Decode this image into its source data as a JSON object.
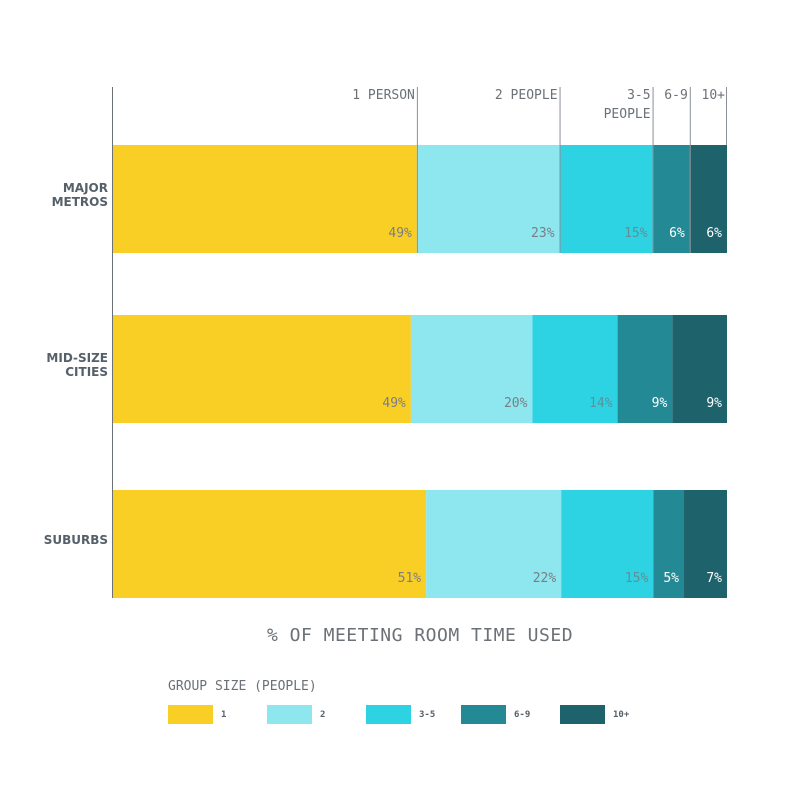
{
  "chart_data": {
    "type": "bar",
    "orientation": "horizontal",
    "stacked": true,
    "categories": [
      [
        "MAJOR",
        "METROS"
      ],
      [
        "MID-SIZE",
        "CITIES"
      ],
      [
        "SUBURBS"
      ]
    ],
    "series": [
      {
        "name": "1",
        "color": "#f9cf26",
        "values": [
          49,
          49,
          51
        ],
        "labels": [
          "49%",
          "49%",
          "51%"
        ],
        "label_color": "#7a7e84"
      },
      {
        "name": "2",
        "color": "#8ee7ef",
        "values": [
          23,
          20,
          22
        ],
        "labels": [
          "23%",
          "20%",
          "22%"
        ],
        "label_color": "#7a7e84"
      },
      {
        "name": "3-5",
        "color": "#2ed3e3",
        "values": [
          15,
          14,
          15
        ],
        "labels": [
          "15%",
          "14%",
          "15%"
        ],
        "label_color": "#5f8f98"
      },
      {
        "name": "6-9",
        "color": "#238a95",
        "values": [
          6,
          9,
          5
        ],
        "labels": [
          "6%",
          "9%",
          "5%"
        ],
        "label_color": "#ffffff"
      },
      {
        "name": "10+",
        "color": "#1e626b",
        "values": [
          6,
          9,
          7
        ],
        "labels": [
          "6%",
          "9%",
          "7%"
        ],
        "label_color": "#ffffff"
      }
    ],
    "segment_headers": [
      [
        "1 PERSON"
      ],
      [
        "2 PEOPLE"
      ],
      [
        "3-5",
        "PEOPLE"
      ],
      [
        "6-9"
      ],
      [
        "10+"
      ]
    ],
    "xlabel": "% OF MEETING ROOM TIME USED",
    "legend": {
      "title": "GROUP SIZE (PEOPLE)",
      "position": "bottom-left"
    },
    "grid": false
  }
}
